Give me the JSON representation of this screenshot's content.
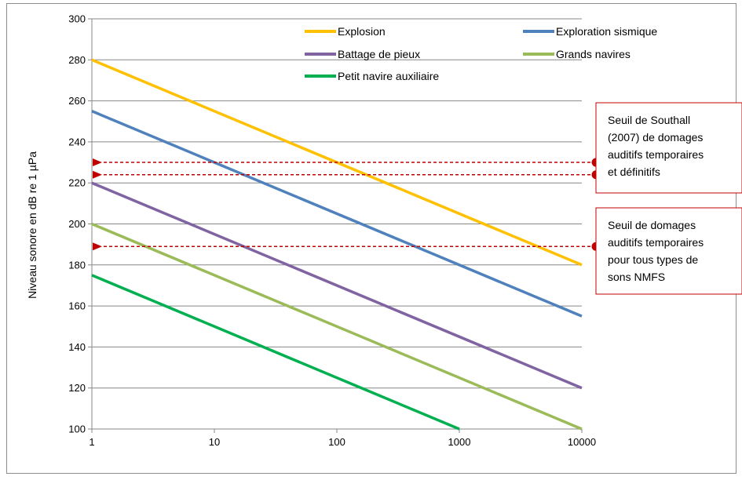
{
  "chart_data": {
    "type": "line",
    "x_scale": "log",
    "x_ticks": [
      "1",
      "10",
      "100",
      "1000",
      "10000"
    ],
    "xlim": [
      1,
      10000
    ],
    "y_ticks": [
      "100",
      "120",
      "140",
      "160",
      "180",
      "200",
      "220",
      "240",
      "260",
      "280",
      "300"
    ],
    "ylim": [
      100,
      300
    ],
    "ylabel": "Niveau sonore en dB re 1 µPa",
    "xlabel": "",
    "title": "",
    "grid": "horizontal",
    "legend_position": "top",
    "series": [
      {
        "name": "Explosion",
        "color": "#FFC000",
        "x": [
          1,
          10000
        ],
        "y": [
          280,
          180
        ]
      },
      {
        "name": "Exploration sismique",
        "color": "#4F81BD",
        "x": [
          1,
          10000
        ],
        "y": [
          255,
          155
        ]
      },
      {
        "name": "Battage de pieux",
        "color": "#8064A2",
        "x": [
          1,
          10000
        ],
        "y": [
          220,
          120
        ]
      },
      {
        "name": "Grands navires",
        "color": "#9BBB59",
        "x": [
          1,
          10000
        ],
        "y": [
          200,
          100
        ]
      },
      {
        "name": "Petit navire auxiliaire",
        "color": "#00B050",
        "x": [
          1,
          1000
        ],
        "y": [
          175,
          100
        ]
      }
    ],
    "thresholds": [
      {
        "y": 230,
        "color": "#C00000"
      },
      {
        "y": 224,
        "color": "#C00000"
      },
      {
        "y": 189,
        "color": "#C00000"
      }
    ],
    "annotations": [
      {
        "lines": [
          "Seuil de Southall",
          "(2007) de domages",
          "auditifs temporaires",
          "et définitifs"
        ],
        "border_color": "#C00000"
      },
      {
        "lines": [
          "Seuil de domages",
          "auditifs temporaires",
          "pour tous types de",
          "sons NMFS"
        ],
        "border_color": "#C00000"
      }
    ]
  }
}
